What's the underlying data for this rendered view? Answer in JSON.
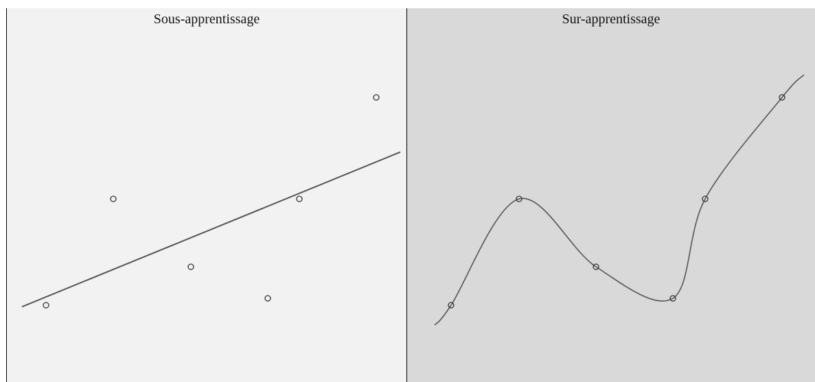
{
  "panels": [
    {
      "title": "Sous-apprentissage",
      "background": "#f2f2f2",
      "curve": "linear-fit",
      "points": [
        [
          57,
          433
        ],
        [
          155,
          278
        ],
        [
          268,
          377
        ],
        [
          380,
          423
        ],
        [
          426,
          278
        ],
        [
          538,
          130
        ]
      ]
    },
    {
      "title": "Sur-apprentissage",
      "background": "#d9d9d9",
      "curve": "interpolating-fit",
      "points": [
        [
          64,
          433
        ],
        [
          163,
          278
        ],
        [
          275,
          377
        ],
        [
          387,
          423
        ],
        [
          434,
          278
        ],
        [
          546,
          130
        ]
      ]
    }
  ],
  "colors": {
    "line": "#555555",
    "marker": "#333333",
    "divider": "#000000"
  }
}
